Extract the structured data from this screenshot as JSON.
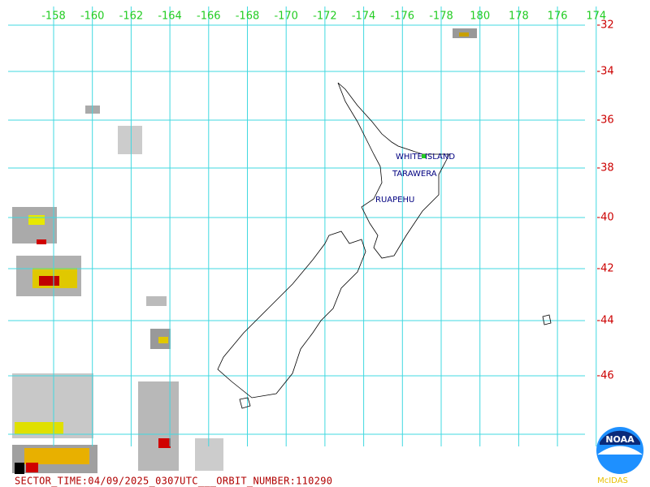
{
  "map": {
    "longitude_labels": [
      "-158",
      "-160",
      "-162",
      "-164",
      "-166",
      "-168",
      "-170",
      "-172",
      "-174",
      "-176",
      "-178",
      "180",
      "178",
      "176",
      "174"
    ],
    "latitude_labels": [
      "-32",
      "-34",
      "-36",
      "-38",
      "-40",
      "-42",
      "-44",
      "-46"
    ],
    "volcanoes": [
      "WHITE ISLAND",
      "TARAWERA",
      "RUAPEHU"
    ],
    "footer": "SECTOR_TIME:04/09/2025_0307UTC___ORBIT_NUMBER:110290",
    "logo": {
      "agency": "NOAA",
      "system": "McIDAS"
    }
  }
}
